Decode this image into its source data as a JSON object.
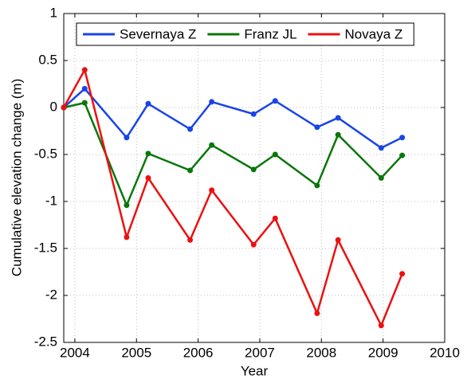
{
  "chart_data": {
    "type": "line",
    "xlabel": "Year",
    "ylabel": "Cumulative elevation change (m)",
    "x": [
      2003.82,
      2004.16,
      2004.84,
      2005.19,
      2005.87,
      2006.22,
      2006.9,
      2007.25,
      2007.93,
      2008.27,
      2008.97,
      2009.31
    ],
    "series": [
      {
        "name": "Severnaya Z",
        "color": "#1a44e8",
        "values": [
          0,
          0.2,
          -0.32,
          0.04,
          -0.23,
          0.06,
          -0.07,
          0.07,
          -0.21,
          -0.11,
          -0.43,
          -0.32
        ]
      },
      {
        "name": "Franz JL",
        "color": "#0b760b",
        "values": [
          0,
          0.05,
          -1.04,
          -0.49,
          -0.67,
          -0.4,
          -0.66,
          -0.5,
          -0.83,
          -0.29,
          -0.75,
          -0.51
        ]
      },
      {
        "name": "Novaya Z",
        "color": "#ec1010",
        "values": [
          0,
          0.4,
          -1.38,
          -0.75,
          -1.41,
          -0.88,
          -1.46,
          -1.18,
          -2.19,
          -1.41,
          -2.32,
          -1.77
        ]
      }
    ],
    "xlim": [
      2003.82,
      2010
    ],
    "xticks": [
      2004,
      2005,
      2006,
      2007,
      2008,
      2009,
      2010
    ],
    "ylim": [
      -2.5,
      1
    ],
    "yticks": [
      -2.5,
      -2,
      -1.5,
      -1,
      -0.5,
      0,
      0.5,
      1
    ],
    "grid": true,
    "legend": "top"
  }
}
